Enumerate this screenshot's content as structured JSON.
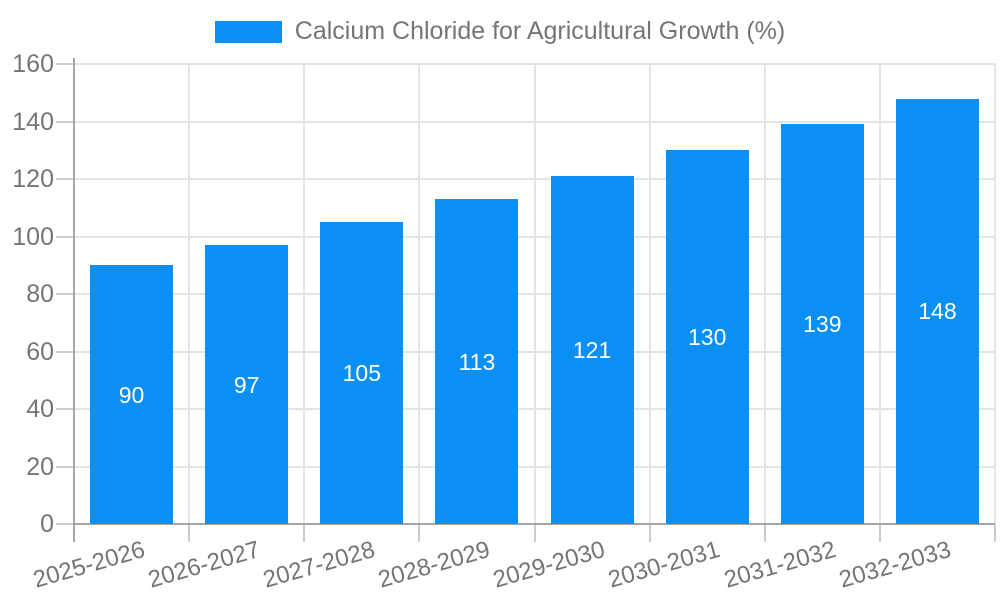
{
  "chart_data": {
    "type": "bar",
    "title": "Calcium Chloride for Agricultural Growth (%)",
    "series": [
      {
        "name": "Calcium Chloride for Agricultural Growth (%)",
        "values": [
          90,
          97,
          105,
          113,
          121,
          130,
          139,
          148
        ]
      }
    ],
    "categories": [
      "2025-2026",
      "2026-2027",
      "2027-2028",
      "2028-2029",
      "2029-2030",
      "2030-2031",
      "2031-2032",
      "2032-2033"
    ],
    "xlabel": "",
    "ylabel": "",
    "ylim": [
      0,
      160
    ],
    "ytick_step": 20,
    "ytick_labels": [
      "0",
      "20",
      "40",
      "60",
      "80",
      "100",
      "120",
      "140",
      "160"
    ],
    "grid": true,
    "legend_position": "top",
    "value_labels_shown": true,
    "colors": {
      "bar": "#0a90f5",
      "value_label": "#ffffff",
      "axis_text": "#757575",
      "axis_line": "#a6a6a6",
      "grid_line": "#e4e4e4"
    }
  }
}
